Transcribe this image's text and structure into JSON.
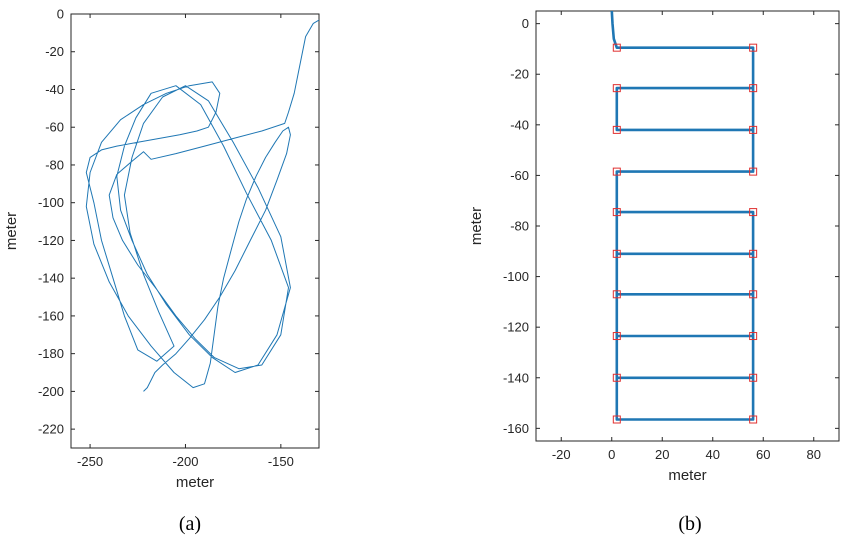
{
  "colors": {
    "track": "#1f77b4",
    "marker": "#e03030",
    "axis": "#262626",
    "background": "#ffffff"
  },
  "chart_data": [
    {
      "type": "line",
      "caption": "(a)",
      "xlabel": "meter",
      "ylabel": "meter",
      "xlim": [
        -260,
        -130
      ],
      "ylim": [
        -230,
        0
      ],
      "xticks": [
        -250,
        -200,
        -150
      ],
      "yticks": [
        0,
        -20,
        -40,
        -60,
        -80,
        -100,
        -120,
        -140,
        -160,
        -180,
        -200,
        -220
      ],
      "grid": false,
      "series": [
        {
          "values_note": "",
          "x": [
            -128,
            -133,
            -137,
            -139,
            -141,
            -143,
            -146,
            -148,
            -160,
            -175,
            -190,
            -205,
            -218,
            -222,
            -228,
            -236,
            -240,
            -238,
            -233,
            -225,
            -215,
            -205,
            -195,
            -185,
            -172,
            -160,
            -150,
            -146,
            -155,
            -168,
            -180,
            -192,
            -205,
            -218,
            -226,
            -232,
            -236,
            -234,
            -228,
            -220,
            -210,
            -198,
            -186,
            -174,
            -162,
            -152,
            -145,
            -150,
            -162,
            -175,
            -188,
            -200,
            -212,
            -222,
            -228,
            -232,
            -229,
            -222,
            -214,
            -206,
            -215,
            -225,
            -232,
            -238,
            -244,
            -248,
            -252,
            -250,
            -244,
            -236,
            -225,
            -214,
            -203,
            -194,
            -188,
            -184,
            -182,
            -186,
            -198,
            -210,
            -222,
            -234,
            -244,
            -250,
            -252,
            -248,
            -240,
            -230,
            -218,
            -206,
            -196,
            -190,
            -187,
            -185,
            -183,
            -180,
            -176,
            -172,
            -168,
            -163,
            -158,
            -153,
            -149,
            -146,
            -145,
            -147,
            -152,
            -158,
            -166,
            -174,
            -182,
            -190,
            -198,
            -205,
            -212,
            -216,
            -218,
            -220,
            -222,
            -222
          ],
          "y": [
            -2,
            -5,
            -12,
            -22,
            -32,
            -42,
            -52,
            -58,
            -62,
            -66,
            -70,
            -74,
            -77,
            -73,
            -78,
            -85,
            -96,
            -108,
            -120,
            -133,
            -146,
            -160,
            -172,
            -182,
            -188,
            -186,
            -170,
            -145,
            -120,
            -95,
            -70,
            -48,
            -38,
            -42,
            -55,
            -70,
            -86,
            -104,
            -120,
            -138,
            -154,
            -170,
            -182,
            -190,
            -186,
            -170,
            -145,
            -118,
            -92,
            -68,
            -46,
            -38,
            -44,
            -58,
            -76,
            -96,
            -116,
            -138,
            -158,
            -176,
            -184,
            -178,
            -160,
            -140,
            -120,
            -100,
            -84,
            -76,
            -72,
            -70,
            -68,
            -66,
            -64,
            -62,
            -60,
            -52,
            -42,
            -36,
            -38,
            -42,
            -48,
            -56,
            -68,
            -84,
            -102,
            -122,
            -142,
            -160,
            -176,
            -190,
            -198,
            -196,
            -185,
            -170,
            -155,
            -140,
            -125,
            -110,
            -98,
            -86,
            -76,
            -68,
            -62,
            -60,
            -64,
            -74,
            -88,
            -104,
            -120,
            -136,
            -150,
            -162,
            -172,
            -180,
            -186,
            -190,
            -194,
            -198,
            -200,
            -200
          ]
        }
      ]
    },
    {
      "type": "line",
      "caption": "(b)",
      "xlabel": "meter",
      "ylabel": "meter",
      "xlim": [
        -30,
        90
      ],
      "ylim": [
        -165,
        5
      ],
      "xticks": [
        -20,
        0,
        20,
        40,
        60,
        80
      ],
      "yticks": [
        0,
        -20,
        -40,
        -60,
        -80,
        -100,
        -120,
        -140,
        -160
      ],
      "grid": false,
      "series": [
        {
          "x": [
            0,
            0.3,
            0.8,
            2,
            2,
            56,
            56,
            2,
            2,
            56,
            56,
            2,
            2,
            56,
            56,
            2,
            2,
            56,
            56,
            2,
            2,
            56,
            56,
            2,
            2,
            56,
            56,
            2,
            2,
            56,
            56,
            2,
            2,
            56,
            56,
            2
          ],
          "y": [
            5,
            0,
            -6,
            -9.5,
            -9.5,
            -9.5,
            -25.5,
            -25.5,
            -42,
            -42,
            -58.5,
            -58.5,
            -74.5,
            -74.5,
            -91,
            -91,
            -107,
            -107,
            -123.5,
            -123.5,
            -140,
            -140,
            -156.5,
            -156.5,
            -140,
            -140,
            -123.5,
            -123.5,
            -107,
            -107,
            -91,
            -91,
            -58.5,
            -58.5,
            -25.5,
            -25.5
          ]
        }
      ],
      "markers": {
        "x": [
          2,
          56,
          2,
          56,
          2,
          56,
          2,
          56,
          2,
          56,
          2,
          56,
          2,
          56,
          2,
          56,
          2,
          56,
          2,
          56
        ],
        "y": [
          -9.5,
          -9.5,
          -25.5,
          -25.5,
          -42,
          -42,
          -58.5,
          -58.5,
          -74.5,
          -74.5,
          -91,
          -91,
          -107,
          -107,
          -123.5,
          -123.5,
          -140,
          -140,
          -156.5,
          -156.5
        ]
      }
    }
  ]
}
